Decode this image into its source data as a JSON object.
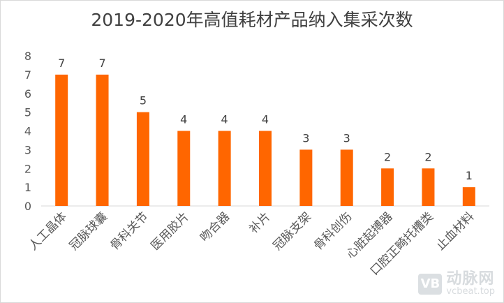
{
  "chart_data": {
    "type": "bar",
    "title": "2019-2020年高值耗材产品纳入集采次数",
    "categories": [
      "人工晶体",
      "冠脉球囊",
      "骨科关节",
      "医用胶片",
      "吻合器",
      "补片",
      "冠脉支架",
      "骨科创伤",
      "心脏起搏器",
      "口腔正畸托槽类",
      "止血材料"
    ],
    "values": [
      7,
      7,
      5,
      4,
      4,
      4,
      3,
      3,
      2,
      2,
      1
    ],
    "ylim": [
      0,
      8
    ],
    "yticks": [
      0,
      1,
      2,
      3,
      4,
      5,
      6,
      7,
      8
    ],
    "grid": false,
    "legend": "none",
    "data_labels": true,
    "bar_color": "#ff6600"
  },
  "watermark": {
    "logo_letter": "VB",
    "brand": "动脉网",
    "url": "vcbeat.top"
  }
}
